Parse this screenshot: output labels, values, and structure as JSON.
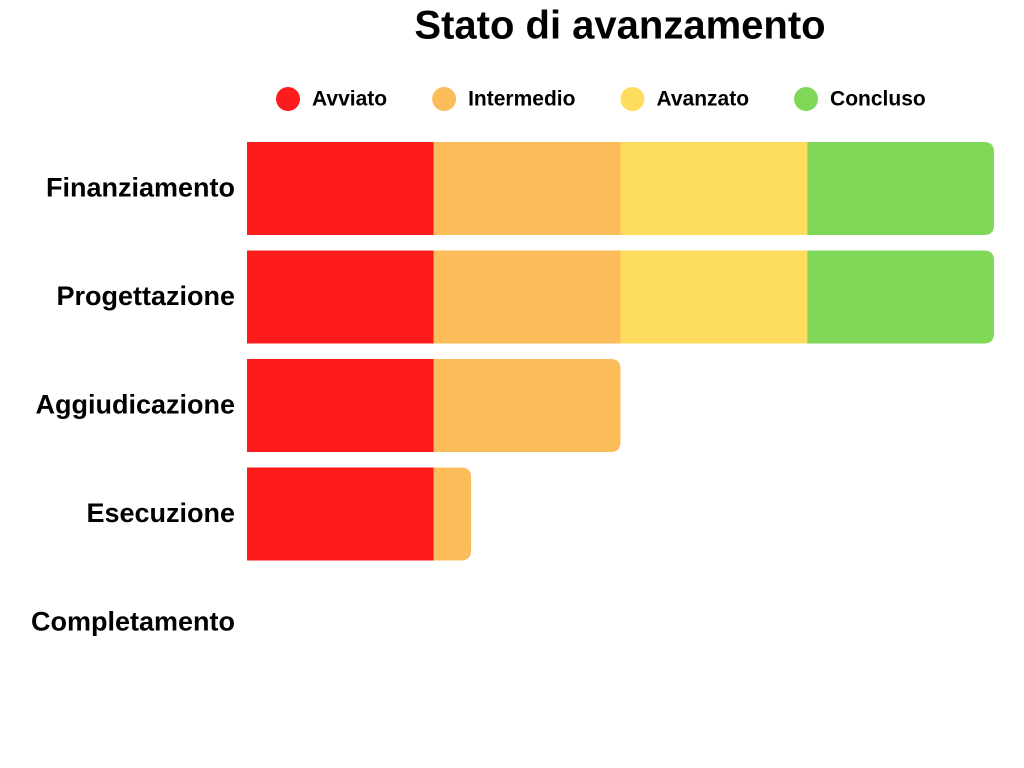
{
  "chart_data": {
    "type": "stacked-bar-horizontal",
    "title": "Stato di avanzamento",
    "categories": [
      "Finanziamento",
      "Progettazione",
      "Aggiudicazione",
      "Esecuzione",
      "Completamento"
    ],
    "series": [
      {
        "name": "Avviato",
        "color": "#fe1b1b",
        "values": [
          25,
          25,
          25,
          25,
          0
        ]
      },
      {
        "name": "Intermedio",
        "color": "#fcbc5a",
        "values": [
          25,
          25,
          25,
          5,
          0
        ]
      },
      {
        "name": "Avanzato",
        "color": "#fedd5e",
        "values": [
          25,
          25,
          0,
          0,
          0
        ]
      },
      {
        "name": "Concluso",
        "color": "#7fd858",
        "values": [
          25,
          25,
          0,
          0,
          0
        ]
      }
    ],
    "xlim": [
      0,
      100
    ]
  }
}
